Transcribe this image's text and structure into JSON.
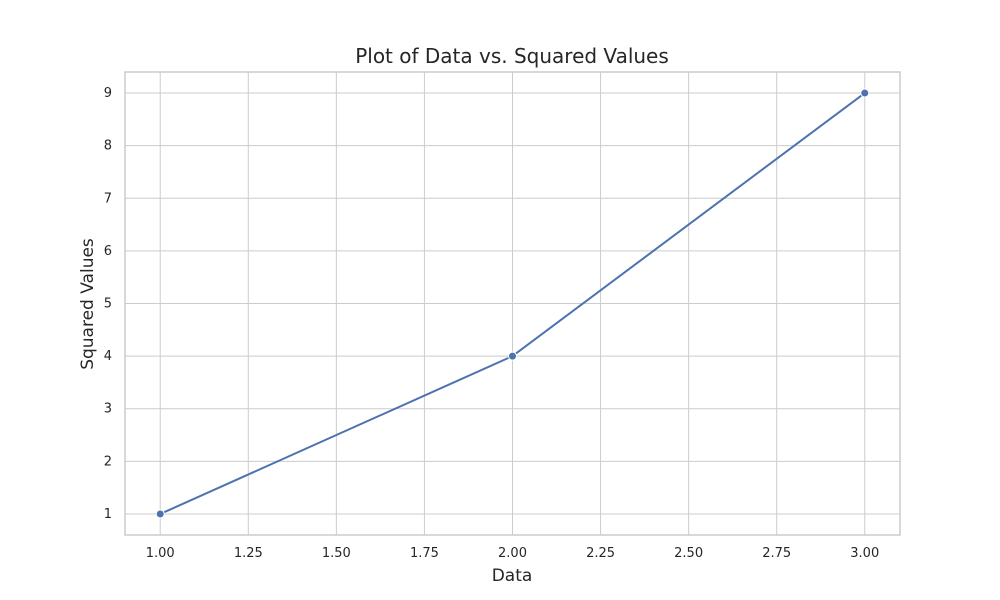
{
  "chart_data": {
    "type": "line",
    "title": "Plot of Data vs. Squared Values",
    "xlabel": "Data",
    "ylabel": "Squared Values",
    "xlim": [
      0.9,
      3.1
    ],
    "ylim": [
      0.6,
      9.4
    ],
    "xticks": [
      1.0,
      1.25,
      1.5,
      1.75,
      2.0,
      2.25,
      2.5,
      2.75,
      3.0
    ],
    "xtick_labels": [
      "1.00",
      "1.25",
      "1.50",
      "1.75",
      "2.00",
      "2.25",
      "2.50",
      "2.75",
      "3.00"
    ],
    "yticks": [
      1,
      2,
      3,
      4,
      5,
      6,
      7,
      8,
      9
    ],
    "ytick_labels": [
      "1",
      "2",
      "3",
      "4",
      "5",
      "6",
      "7",
      "8",
      "9"
    ],
    "grid": true,
    "series": [
      {
        "x": [
          1,
          2,
          3
        ],
        "y": [
          1,
          4,
          9
        ],
        "color": "#4c72b0",
        "marker": "circle"
      }
    ],
    "colors": {
      "background": "#ffffff",
      "grid": "#cccccc",
      "axes_edge": "#cccccc",
      "text": "#262626"
    }
  }
}
